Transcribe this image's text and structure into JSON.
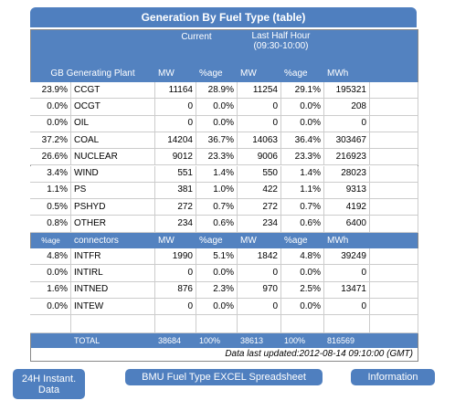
{
  "title": "Generation By Fuel Type (table)",
  "header": {
    "current": "Current",
    "last_half_hour": "Last Half Hour",
    "period": "(09:30-10:00)",
    "plant": "GB Generating Plant",
    "columns": [
      "MW",
      "%age",
      "MW",
      "%age",
      "MWh"
    ]
  },
  "rows": [
    [
      "23.9%",
      "CCGT",
      "11164",
      "28.9%",
      "11254",
      "29.1%",
      "195321"
    ],
    [
      "0.0%",
      "OCGT",
      "0",
      "0.0%",
      "0",
      "0.0%",
      "208"
    ],
    [
      "0.0%",
      "OIL",
      "0",
      "0.0%",
      "0",
      "0.0%",
      "0"
    ],
    [
      "37.2%",
      "COAL",
      "14204",
      "36.7%",
      "14063",
      "36.4%",
      "303467"
    ],
    [
      "26.6%",
      "NUCLEAR",
      "9012",
      "23.3%",
      "9006",
      "23.3%",
      "216923"
    ],
    [
      "3.4%",
      "WIND",
      "551",
      "1.4%",
      "550",
      "1.4%",
      "28023"
    ],
    [
      "1.1%",
      "PS",
      "381",
      "1.0%",
      "422",
      "1.1%",
      "9313"
    ],
    [
      "0.5%",
      "PSHYD",
      "272",
      "0.7%",
      "272",
      "0.7%",
      "4192"
    ],
    [
      "0.8%",
      "OTHER",
      "234",
      "0.6%",
      "234",
      "0.6%",
      "6400"
    ]
  ],
  "interconnector_header": {
    "share": "%age",
    "label": "connectors",
    "columns": [
      "MW",
      "%age",
      "MW",
      "%age",
      "MWh"
    ]
  },
  "interconnector_rows": [
    [
      "4.8%",
      "INTFR",
      "1990",
      "5.1%",
      "1842",
      "4.8%",
      "39249"
    ],
    [
      "0.0%",
      "INTIRL",
      "0",
      "0.0%",
      "0",
      "0.0%",
      "0"
    ],
    [
      "1.6%",
      "INTNED",
      "876",
      "2.3%",
      "970",
      "2.5%",
      "13471"
    ],
    [
      "0.0%",
      "INTEW",
      "0",
      "0.0%",
      "0",
      "0.0%",
      "0"
    ]
  ],
  "total": {
    "label": "TOTAL",
    "values": [
      "38684",
      "100%",
      "38613",
      "100%",
      "816569"
    ]
  },
  "updated": "Data last updated:2012-08-14 09:10:00 (GMT)",
  "buttons": [
    "24H Instant. Data",
    "BMU Fuel Type EXCEL Spreadsheet",
    "Information"
  ]
}
